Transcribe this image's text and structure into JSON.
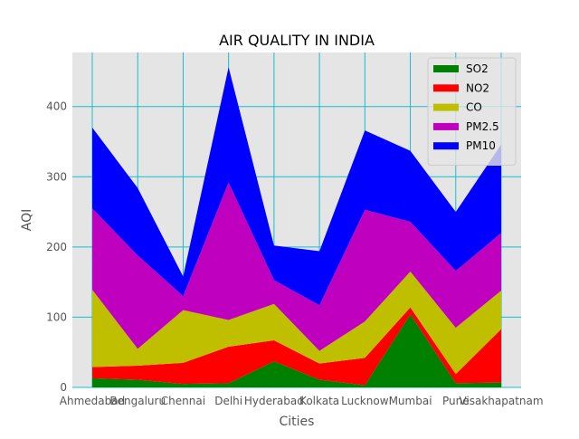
{
  "chart_data": {
    "type": "area",
    "stacked": true,
    "title": "AIR QUALITY IN INDIA",
    "xlabel": "Cities",
    "ylabel": "AQI",
    "categories": [
      "Ahmedabad",
      "Bengaluru",
      "Chennai",
      "Delhi",
      "Hyderabad",
      "Kolkata",
      "Lucknow",
      "Mumbai",
      "Pune",
      "Visakhapatnam"
    ],
    "ylim": [
      0,
      477
    ],
    "yticks": [
      0,
      100,
      200,
      300,
      400
    ],
    "grid": true,
    "legend_position": "upper right",
    "series": [
      {
        "name": "SO2",
        "color": "#008000",
        "values": [
          13,
          11,
          5,
          6,
          37,
          11,
          3,
          104,
          6,
          7
        ]
      },
      {
        "name": "NO2",
        "color": "#ff0000",
        "values": [
          16,
          20,
          30,
          52,
          30,
          23,
          39,
          10,
          13,
          76
        ]
      },
      {
        "name": "CO",
        "color": "#bfbf00",
        "values": [
          110,
          24,
          75,
          38,
          52,
          18,
          52,
          51,
          66,
          55
        ]
      },
      {
        "name": "PM2.5",
        "color": "#bf00bf",
        "values": [
          116,
          133,
          20,
          196,
          34,
          65,
          159,
          71,
          81,
          82
        ]
      },
      {
        "name": "PM10",
        "color": "#0000ff",
        "values": [
          115,
          96,
          28,
          164,
          49,
          77,
          113,
          101,
          84,
          126
        ]
      }
    ]
  }
}
